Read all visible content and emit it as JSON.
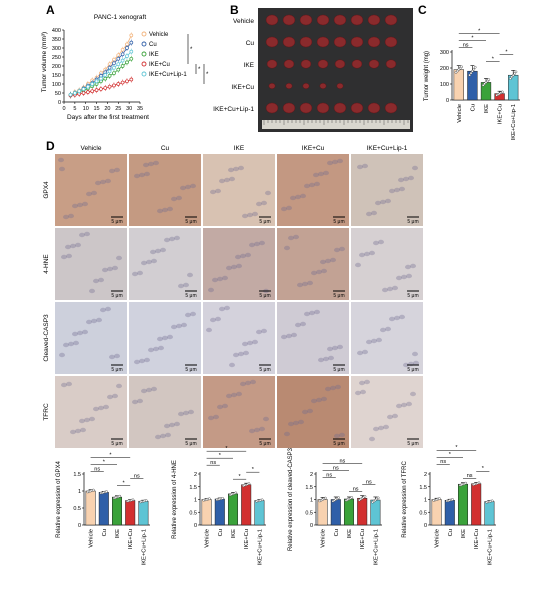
{
  "panels": {
    "A": {
      "letter": "A",
      "chart_data": {
        "type": "line",
        "title": "PANC-1 xenograft",
        "xlabel": "Days after the first treatment",
        "ylabel": "Tumor volume (mm³)",
        "xlim": [
          0,
          35
        ],
        "ylim": [
          0,
          400
        ],
        "xticks": [
          0,
          5,
          10,
          15,
          20,
          25,
          30,
          35
        ],
        "yticks": [
          0,
          50,
          100,
          150,
          200,
          250,
          300,
          350,
          400
        ],
        "x": [
          3,
          5,
          7,
          9,
          11,
          13,
          15,
          17,
          19,
          21,
          23,
          25,
          27,
          29,
          31
        ],
        "legend_position": "top-right",
        "significance_marks": [
          "*",
          "*",
          "*"
        ],
        "series": [
          {
            "name": "Vehicle",
            "color": "#f2b27a",
            "values": [
              40,
              55,
              65,
              80,
              100,
              120,
              135,
              160,
              180,
              210,
              235,
              260,
              290,
              320,
              370
            ]
          },
          {
            "name": "Cu",
            "color": "#2f5fa8",
            "values": [
              40,
              50,
              60,
              75,
              90,
              105,
              125,
              145,
              165,
              190,
              215,
              240,
              265,
              300,
              330
            ]
          },
          {
            "name": "IKE",
            "color": "#3aa23a",
            "values": [
              38,
              45,
              55,
              65,
              75,
              88,
              100,
              115,
              130,
              145,
              160,
              180,
              200,
              220,
              240
            ]
          },
          {
            "name": "IKE+Cu",
            "color": "#d23030",
            "values": [
              36,
              40,
              45,
              50,
              55,
              60,
              66,
              72,
              78,
              85,
              92,
              100,
              108,
              115,
              125
            ]
          },
          {
            "name": "IKE+Cu+Lip-1",
            "color": "#5ec4d4",
            "values": [
              40,
              50,
              60,
              72,
              85,
              100,
              115,
              130,
              150,
              170,
              190,
              210,
              230,
              255,
              280
            ]
          }
        ]
      }
    },
    "B": {
      "letter": "B",
      "row_labels": [
        "Vehicle",
        "Cu",
        "IKE",
        "IKE+Cu",
        "IKE+Cu+Lip-1"
      ],
      "tumor_counts": [
        8,
        8,
        8,
        5,
        8
      ],
      "ruler_label": "cm"
    },
    "C": {
      "letter": "C",
      "chart_data": {
        "type": "bar",
        "ylabel": "Tumor weight (mg)",
        "ylim": [
          0,
          300
        ],
        "yticks": [
          0,
          100,
          200,
          300
        ],
        "categories": [
          "Vehicle",
          "Cu",
          "IKE",
          "IKE+Cu",
          "IKE+Cu+Lip-1"
        ],
        "colors": [
          "#f8d2b0",
          "#2f5fa8",
          "#3aa23a",
          "#d23030",
          "#5ec4d4"
        ],
        "values": [
          190,
          180,
          110,
          40,
          155
        ],
        "errors": [
          25,
          35,
          25,
          15,
          30
        ],
        "comparisons": [
          {
            "a": 0,
            "b": 1,
            "label": "ns"
          },
          {
            "a": 0,
            "b": 2,
            "label": "*"
          },
          {
            "a": 0,
            "b": 3,
            "label": "*"
          },
          {
            "a": 2,
            "b": 3,
            "label": "*"
          },
          {
            "a": 3,
            "b": 4,
            "label": "*"
          }
        ]
      }
    },
    "D": {
      "letter": "D",
      "columns": [
        "Vehicle",
        "Cu",
        "IKE",
        "IKE+Cu",
        "IKE+Cu+Lip-1"
      ],
      "rows": [
        "GPX4",
        "4-HNE",
        "Cleaved-CASP3",
        "TFRC"
      ],
      "scale_label": "5 μm",
      "tile_colors": [
        [
          "#c89e86",
          "#c49a82",
          "#d8c2b2",
          "#c39882",
          "#cfc2b8"
        ],
        [
          "#ccc6c8",
          "#d2ced2",
          "#c2aaa4",
          "#c2a294",
          "#d6d0d2"
        ],
        [
          "#cdd0dc",
          "#d0d2de",
          "#d4d2dc",
          "#cfcbd4",
          "#d6d4dc"
        ],
        [
          "#d9ccc7",
          "#d2c6c1",
          "#c49a86",
          "#b98a72",
          "#dfd4d0"
        ]
      ]
    },
    "bar_charts": [
      {
        "chart_data": {
          "type": "bar",
          "ylabel": "Relative expression of GPX4",
          "ylim": [
            0,
            1.5
          ],
          "yticks": [
            0,
            0.5,
            1.0,
            1.5
          ],
          "categories": [
            "Vehicle",
            "Cu",
            "IKE",
            "IKE+Cu",
            "IKE+Cu+Lip-1"
          ],
          "colors": [
            "#f8d2b0",
            "#2f5fa8",
            "#3aa23a",
            "#d23030",
            "#5ec4d4"
          ],
          "values": [
            1.0,
            0.96,
            0.82,
            0.72,
            0.7
          ],
          "errors": [
            0.04,
            0.03,
            0.04,
            0.03,
            0.03
          ],
          "comparisons": [
            {
              "a": 0,
              "b": 1,
              "label": "ns"
            },
            {
              "a": 0,
              "b": 2,
              "label": "*"
            },
            {
              "a": 0,
              "b": 3,
              "label": "*"
            },
            {
              "a": 2,
              "b": 3,
              "label": "*"
            },
            {
              "a": 3,
              "b": 4,
              "label": "ns"
            }
          ]
        }
      },
      {
        "chart_data": {
          "type": "bar",
          "ylabel": "Relative expression of 4-HNE",
          "ylim": [
            0,
            2.0
          ],
          "yticks": [
            0,
            0.5,
            1.0,
            1.5,
            2.0
          ],
          "categories": [
            "Vehicle",
            "Cu",
            "IKE",
            "IKE+Cu",
            "IKE+Cu+Lip-1"
          ],
          "colors": [
            "#f8d2b0",
            "#2f5fa8",
            "#3aa23a",
            "#d23030",
            "#5ec4d4"
          ],
          "values": [
            1.0,
            1.02,
            1.22,
            1.58,
            0.96
          ],
          "errors": [
            0.04,
            0.04,
            0.06,
            0.06,
            0.04
          ],
          "comparisons": [
            {
              "a": 0,
              "b": 1,
              "label": "ns"
            },
            {
              "a": 0,
              "b": 2,
              "label": "*"
            },
            {
              "a": 0,
              "b": 3,
              "label": "*"
            },
            {
              "a": 2,
              "b": 3,
              "label": "*"
            },
            {
              "a": 3,
              "b": 4,
              "label": "*"
            }
          ]
        }
      },
      {
        "chart_data": {
          "type": "bar",
          "ylabel": "Relative expression of cleaved-CASP3",
          "ylim": [
            0,
            2.0
          ],
          "yticks": [
            0,
            0.5,
            1.0,
            1.5,
            2.0
          ],
          "categories": [
            "Vehicle",
            "Cu",
            "IKE",
            "IKE+Cu",
            "IKE+Cu+Lip-1"
          ],
          "colors": [
            "#f8d2b0",
            "#2f5fa8",
            "#3aa23a",
            "#d23030",
            "#5ec4d4"
          ],
          "values": [
            1.0,
            1.0,
            1.02,
            1.05,
            0.98
          ],
          "errors": [
            0.08,
            0.1,
            0.08,
            0.1,
            0.12
          ],
          "comparisons": [
            {
              "a": 0,
              "b": 1,
              "label": "ns"
            },
            {
              "a": 0,
              "b": 2,
              "label": "ns"
            },
            {
              "a": 0,
              "b": 3,
              "label": "ns"
            },
            {
              "a": 2,
              "b": 3,
              "label": "ns"
            },
            {
              "a": 3,
              "b": 4,
              "label": "ns"
            }
          ]
        }
      },
      {
        "chart_data": {
          "type": "bar",
          "ylabel": "Relative expression of TFRC",
          "ylim": [
            0,
            2.0
          ],
          "yticks": [
            0,
            0.5,
            1.0,
            1.5,
            2.0
          ],
          "categories": [
            "Vehicle",
            "Cu",
            "IKE",
            "IKE+Cu",
            "IKE+Cu+Lip-1"
          ],
          "colors": [
            "#f8d2b0",
            "#2f5fa8",
            "#3aa23a",
            "#d23030",
            "#5ec4d4"
          ],
          "values": [
            1.0,
            0.97,
            1.6,
            1.62,
            0.92
          ],
          "errors": [
            0.05,
            0.04,
            0.06,
            0.05,
            0.04
          ],
          "comparisons": [
            {
              "a": 0,
              "b": 1,
              "label": "ns"
            },
            {
              "a": 0,
              "b": 2,
              "label": "*"
            },
            {
              "a": 0,
              "b": 3,
              "label": "*"
            },
            {
              "a": 2,
              "b": 3,
              "label": "ns"
            },
            {
              "a": 3,
              "b": 4,
              "label": "*"
            }
          ]
        }
      }
    ]
  }
}
